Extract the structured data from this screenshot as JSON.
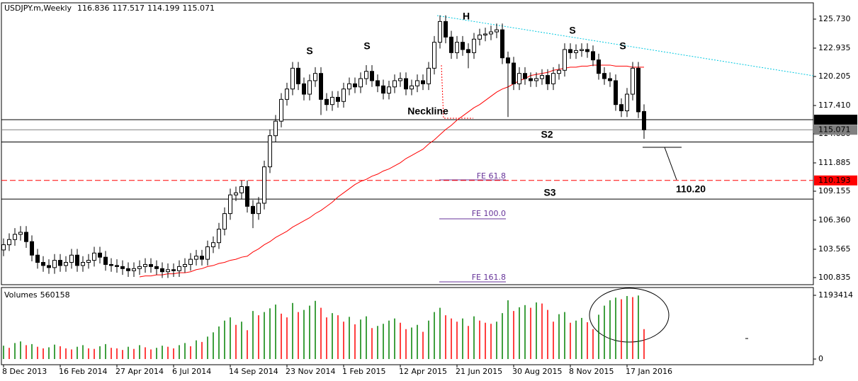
{
  "chart_data": {
    "type": "candlestick",
    "symbol": "USDJPY.m,Weekly",
    "categories": [
      "8 Dec 2013",
      null,
      null,
      null,
      null,
      null,
      null,
      null,
      null,
      null,
      "16 Feb 2014",
      null,
      null,
      null,
      null,
      null,
      null,
      null,
      null,
      null,
      "27 Apr 2014",
      null,
      null,
      null,
      null,
      null,
      null,
      null,
      null,
      null,
      "6 Jul 2014",
      null,
      null,
      null,
      null,
      null,
      null,
      null,
      null,
      null,
      "14 Sep 2014",
      null,
      null,
      null,
      null,
      null,
      null,
      null,
      null,
      null,
      "23 Nov 2014",
      null,
      null,
      null,
      null,
      null,
      null,
      null,
      null,
      null,
      "1 Feb 2015",
      null,
      null,
      null,
      null,
      null,
      null,
      null,
      null,
      null,
      "12 Apr 2015",
      null,
      null,
      null,
      null,
      null,
      null,
      null,
      null,
      null,
      "21 Jun 2015",
      null,
      null,
      null,
      null,
      null,
      null,
      null,
      null,
      null,
      "30 Aug 2015",
      null,
      null,
      null,
      null,
      null,
      null,
      null,
      null,
      null,
      "8 Nov 2015",
      null,
      null,
      null,
      null,
      null,
      null,
      null,
      null,
      null,
      "17 Jan 2016",
      null,
      null,
      null
    ],
    "open": [
      103.5,
      104.0,
      104.5,
      105.0,
      105.2,
      104.3,
      103.0,
      102.3,
      102.0,
      101.8,
      102.5,
      102.0,
      102.3,
      103.0,
      102.0,
      102.3,
      102.5,
      103.2,
      102.8,
      102.1,
      102.0,
      101.9,
      101.7,
      101.5,
      101.7,
      101.9,
      102.1,
      101.9,
      101.7,
      101.4,
      101.6,
      101.5,
      101.9,
      102.1,
      102.6,
      102.9,
      102.6,
      103.8,
      104.2,
      105.5,
      107.0,
      108.8,
      109.0,
      109.6,
      107.7,
      107.0,
      108.0,
      111.5,
      114.5,
      115.9,
      118.0,
      119.0,
      121.0,
      119.5,
      118.5,
      119.8,
      120.5,
      118.0,
      117.5,
      118.2,
      117.8,
      119.0,
      119.5,
      119.2,
      120.0,
      120.7,
      119.8,
      119.3,
      118.6,
      119.2,
      119.8,
      120.0,
      119.0,
      119.3,
      119.8,
      119.5,
      121.0,
      123.5,
      125.5,
      124.0,
      122.5,
      123.5,
      122.8,
      122.5,
      123.8,
      124.2,
      124.3,
      124.5,
      124.7,
      122.0,
      121.5,
      119.5,
      120.5,
      120.0,
      119.8,
      120.0,
      120.3,
      119.5,
      120.5,
      120.8,
      122.8,
      122.5,
      122.7,
      122.8,
      122.6,
      121.8,
      120.5,
      120.0,
      119.8,
      117.5,
      116.9,
      118.5,
      121.0,
      116.836
    ],
    "high": [
      104.6,
      105.1,
      105.6,
      105.8,
      105.8,
      104.9,
      103.6,
      102.9,
      102.6,
      103.1,
      103.1,
      102.9,
      103.6,
      103.6,
      102.9,
      103.1,
      103.8,
      103.8,
      103.4,
      102.7,
      102.6,
      102.5,
      102.3,
      102.3,
      102.5,
      102.7,
      102.7,
      102.5,
      102.3,
      102.2,
      102.2,
      102.5,
      102.7,
      103.2,
      103.5,
      103.5,
      104.4,
      104.8,
      106.1,
      107.6,
      109.4,
      109.6,
      110.2,
      110.2,
      108.3,
      108.6,
      112.1,
      115.1,
      116.5,
      118.6,
      119.6,
      121.6,
      121.6,
      120.1,
      120.4,
      121.1,
      121.1,
      118.6,
      118.8,
      118.8,
      119.6,
      120.1,
      120.1,
      120.6,
      121.3,
      121.3,
      120.4,
      119.9,
      119.8,
      120.4,
      120.6,
      120.6,
      119.9,
      120.4,
      120.4,
      121.6,
      124.1,
      126.1,
      126.1,
      124.6,
      124.1,
      124.1,
      123.4,
      124.4,
      124.8,
      124.9,
      125.1,
      125.3,
      125.3,
      122.6,
      122.1,
      121.1,
      121.1,
      120.6,
      120.6,
      120.9,
      120.9,
      121.1,
      121.4,
      123.4,
      123.4,
      123.3,
      123.4,
      123.4,
      123.2,
      122.4,
      121.1,
      120.6,
      120.4,
      118.1,
      119.1,
      121.6,
      121.6,
      117.517
    ],
    "low": [
      102.9,
      103.4,
      103.9,
      104.4,
      103.7,
      102.4,
      101.7,
      101.4,
      101.2,
      101.2,
      101.4,
      101.4,
      101.7,
      101.4,
      101.4,
      101.7,
      101.9,
      102.2,
      101.5,
      101.4,
      101.3,
      101.1,
      100.9,
      100.9,
      101.1,
      101.3,
      101.3,
      101.1,
      100.8,
      100.8,
      100.9,
      100.9,
      101.3,
      101.5,
      102.0,
      102.0,
      102.0,
      103.2,
      103.6,
      104.9,
      106.4,
      108.2,
      108.4,
      107.1,
      105.6,
      106.4,
      107.4,
      110.9,
      113.9,
      115.3,
      117.4,
      118.4,
      118.9,
      117.9,
      117.9,
      119.2,
      116.5,
      116.9,
      116.9,
      117.2,
      117.2,
      118.4,
      118.6,
      118.6,
      119.4,
      119.2,
      118.7,
      118.0,
      118.0,
      118.6,
      119.2,
      118.4,
      118.4,
      118.7,
      118.9,
      118.9,
      120.4,
      122.9,
      123.4,
      121.9,
      121.9,
      122.2,
      121.0,
      121.9,
      123.2,
      123.6,
      123.7,
      123.9,
      121.4,
      116.3,
      118.9,
      118.9,
      119.4,
      119.2,
      119.2,
      119.4,
      118.9,
      118.9,
      119.9,
      120.2,
      121.9,
      121.9,
      122.1,
      122.0,
      121.2,
      119.9,
      119.4,
      119.2,
      116.9,
      116.3,
      116.3,
      117.9,
      116.2,
      114.199
    ],
    "close": [
      104.0,
      104.5,
      105.0,
      105.2,
      104.3,
      103.0,
      102.3,
      102.0,
      101.8,
      102.5,
      102.0,
      102.3,
      103.0,
      102.0,
      102.3,
      102.5,
      103.2,
      102.8,
      102.1,
      102.0,
      101.9,
      101.7,
      101.5,
      101.7,
      101.9,
      102.1,
      101.9,
      101.7,
      101.4,
      101.6,
      101.5,
      101.9,
      102.1,
      102.6,
      102.9,
      102.6,
      103.8,
      104.2,
      105.5,
      107.0,
      108.8,
      109.0,
      109.6,
      107.7,
      107.0,
      108.0,
      111.5,
      114.5,
      115.9,
      118.0,
      119.0,
      121.0,
      119.5,
      118.5,
      119.8,
      120.5,
      118.0,
      117.5,
      118.2,
      117.8,
      119.0,
      119.5,
      119.2,
      120.0,
      120.7,
      119.8,
      119.3,
      118.6,
      119.2,
      119.8,
      120.0,
      119.0,
      119.3,
      119.8,
      119.5,
      121.0,
      123.5,
      125.5,
      124.0,
      122.5,
      123.5,
      122.8,
      122.5,
      123.8,
      124.2,
      124.3,
      124.5,
      124.7,
      122.0,
      121.5,
      119.5,
      120.5,
      120.0,
      119.8,
      120.0,
      120.3,
      119.5,
      120.5,
      120.8,
      122.8,
      122.5,
      122.7,
      122.8,
      122.6,
      121.8,
      120.5,
      120.0,
      119.8,
      117.5,
      116.9,
      118.5,
      121.0,
      116.8,
      115.071
    ],
    "ma": {
      "color": "#ff0000",
      "values": [
        null,
        null,
        null,
        null,
        null,
        null,
        null,
        null,
        null,
        null,
        null,
        null,
        null,
        null,
        null,
        null,
        null,
        null,
        null,
        null,
        null,
        null,
        null,
        null,
        100.9,
        101.0,
        101.0,
        101.1,
        101.1,
        101.2,
        101.2,
        101.3,
        101.3,
        101.4,
        101.6,
        101.7,
        101.9,
        102.0,
        102.2,
        102.3,
        102.5,
        102.6,
        102.8,
        102.9,
        103.3,
        103.6,
        104.0,
        104.3,
        104.7,
        105.0,
        105.3,
        105.7,
        106.0,
        106.3,
        106.6,
        107.0,
        107.3,
        107.7,
        108.1,
        108.6,
        109.0,
        109.4,
        109.8,
        110.1,
        110.3,
        110.6,
        110.8,
        111.1,
        111.3,
        111.6,
        111.9,
        112.3,
        112.6,
        112.9,
        113.2,
        113.7,
        114.1,
        114.6,
        115.1,
        115.5,
        116.0,
        116.4,
        116.8,
        117.2,
        117.5,
        117.9,
        118.3,
        118.7,
        119.0,
        119.2,
        119.5,
        119.8,
        120.0,
        120.3,
        120.4,
        120.5,
        120.6,
        120.8,
        120.9,
        121.0,
        121.1,
        121.1,
        121.2,
        121.2,
        121.3,
        121.3,
        121.3,
        121.3,
        121.2,
        121.2,
        121.2,
        121.1,
        121.1,
        121.1
      ]
    },
    "ylim": [
      100.153,
      127.23
    ],
    "yticks": [
      {
        "value": 125.73,
        "label": "125.730"
      },
      122.935,
      120.205,
      {
        "value": 117.41,
        "label": "117.410"
      },
      {
        "value": 114.68,
        "label": "114.680"
      },
      111.885,
      109.155,
      {
        "value": 106.36,
        "label": "106.360"
      },
      103.565,
      100.835
    ],
    "hlines": [
      {
        "value": 116.047,
        "color": "#000000",
        "boxed": true
      },
      {
        "value": 115.071,
        "color": "#808080",
        "boxed": true
      },
      {
        "value": 113.9,
        "color": "#000000"
      },
      {
        "value": 108.4,
        "color": "#000000"
      },
      {
        "value": 110.193,
        "color": "#ff0000",
        "dashed": true,
        "boxed": true
      }
    ],
    "annotations": [
      "S",
      "S",
      "H",
      "S",
      "S",
      "Neckline",
      "S2",
      "S3",
      "110.20",
      "FE 61.8",
      "FE 100.0",
      "FE 161.8"
    ],
    "volume_label": "Volumes",
    "volumes": [
      250000,
      210000,
      300000,
      330000,
      260000,
      280000,
      230000,
      200000,
      220000,
      270000,
      240000,
      200000,
      180000,
      230000,
      260000,
      200000,
      190000,
      240000,
      280000,
      210000,
      200000,
      170000,
      230000,
      190000,
      260000,
      220000,
      180000,
      210000,
      250000,
      230000,
      200000,
      260000,
      300000,
      240000,
      350000,
      320000,
      420000,
      500000,
      610000,
      720000,
      780000,
      640000,
      700000,
      540000,
      900000,
      820000,
      880000,
      950000,
      1020000,
      850000,
      780000,
      1050000,
      880000,
      920000,
      1000000,
      1090000,
      960000,
      780000,
      860000,
      820000,
      700000,
      790000,
      650000,
      740000,
      800000,
      580000,
      620000,
      660000,
      720000,
      760000,
      680000,
      560000,
      590000,
      640000,
      510000,
      720000,
      880000,
      960000,
      820000,
      760000,
      700000,
      760000,
      620000,
      800000,
      720000,
      680000,
      660000,
      700000,
      860000,
      1100000,
      900000,
      970000,
      1010000,
      960000,
      1060000,
      1040000,
      920000,
      700000,
      840000,
      880000,
      680000,
      720000,
      770000,
      690000,
      560000,
      830000,
      1000000,
      1100000,
      1150000,
      1120000,
      1180000,
      1160000,
      1190000,
      560158
    ],
    "volume_ylim": [
      0,
      1352536
    ],
    "volume_yticks": [
      0,
      1193414
    ],
    "volume_colors": {
      "up": "#008000",
      "down": "#ff0000"
    }
  }
}
